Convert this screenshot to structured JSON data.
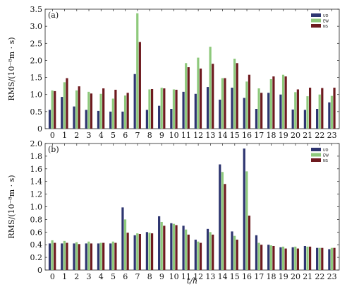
{
  "chart_data": [
    {
      "type": "bar",
      "panel_label": "(a)",
      "ylabel": "RMS/(10⁻⁸m · s)",
      "ylim": [
        0,
        3.5
      ],
      "yticks": [
        "0",
        "0.5",
        "1.0",
        "1.5",
        "2.0",
        "2.5",
        "3.0",
        "3.5"
      ],
      "categories": [
        "0",
        "1",
        "2",
        "3",
        "4",
        "5",
        "6",
        "7",
        "8",
        "9",
        "10",
        "11",
        "12",
        "13",
        "14",
        "15",
        "16",
        "17",
        "18",
        "19",
        "20",
        "21",
        "22",
        "23"
      ],
      "legend_position": "top-right",
      "series": [
        {
          "name": "UD",
          "color": "#2e3570",
          "values": [
            0.55,
            0.93,
            0.65,
            0.55,
            0.52,
            0.5,
            0.5,
            1.6,
            0.55,
            0.67,
            0.58,
            1.08,
            1.02,
            1.22,
            0.85,
            1.2,
            0.9,
            0.58,
            1.05,
            1.0,
            0.56,
            0.55,
            0.58,
            0.77
          ]
        },
        {
          "name": "EW",
          "color": "#8ec97c",
          "values": [
            1.12,
            1.36,
            1.12,
            1.08,
            1.02,
            0.88,
            0.97,
            3.38,
            1.15,
            1.2,
            1.15,
            1.92,
            2.08,
            2.4,
            1.48,
            2.05,
            1.38,
            1.18,
            1.45,
            1.58,
            1.07,
            0.95,
            1.0,
            0.96
          ]
        },
        {
          "name": "NS",
          "color": "#6e1a1f",
          "values": [
            1.1,
            1.48,
            1.24,
            1.03,
            1.18,
            1.14,
            1.05,
            2.54,
            1.16,
            1.18,
            1.14,
            1.8,
            1.76,
            1.9,
            1.48,
            1.92,
            1.58,
            1.05,
            1.53,
            1.53,
            1.15,
            1.2,
            1.19,
            1.2
          ]
        }
      ]
    },
    {
      "type": "bar",
      "panel_label": "(b)",
      "ylabel": "RMS/(10⁻⁸m · s)",
      "xlabel": "t/h",
      "ylim": [
        0,
        2.0
      ],
      "yticks": [
        "0",
        "0.2",
        "0.4",
        "0.6",
        "0.8",
        "1.0",
        "1.2",
        "1.4",
        "1.6",
        "1.8",
        "2.0"
      ],
      "categories": [
        "0",
        "1",
        "2",
        "3",
        "4",
        "5",
        "6",
        "7",
        "8",
        "9",
        "10",
        "11",
        "12",
        "13",
        "14",
        "15",
        "16",
        "17",
        "18",
        "19",
        "20",
        "21",
        "22",
        "23"
      ],
      "legend_position": "top-right",
      "series": [
        {
          "name": "UD",
          "color": "#2e3570",
          "values": [
            0.42,
            0.42,
            0.42,
            0.42,
            0.42,
            0.42,
            0.99,
            0.55,
            0.6,
            0.85,
            0.74,
            0.7,
            0.48,
            0.65,
            1.67,
            0.61,
            1.92,
            0.55,
            0.4,
            0.36,
            0.36,
            0.38,
            0.35,
            0.33
          ]
        },
        {
          "name": "EW",
          "color": "#8ec97c",
          "values": [
            0.47,
            0.46,
            0.44,
            0.45,
            0.43,
            0.45,
            0.8,
            0.58,
            0.59,
            0.76,
            0.73,
            0.64,
            0.45,
            0.6,
            1.55,
            0.54,
            1.56,
            0.43,
            0.39,
            0.37,
            0.37,
            0.37,
            0.35,
            0.35
          ]
        },
        {
          "name": "NS",
          "color": "#6e1a1f",
          "values": [
            0.43,
            0.43,
            0.41,
            0.42,
            0.43,
            0.43,
            0.59,
            0.57,
            0.58,
            0.7,
            0.71,
            0.56,
            0.43,
            0.56,
            1.36,
            0.48,
            0.86,
            0.4,
            0.38,
            0.34,
            0.34,
            0.37,
            0.35,
            0.35
          ]
        }
      ]
    }
  ]
}
